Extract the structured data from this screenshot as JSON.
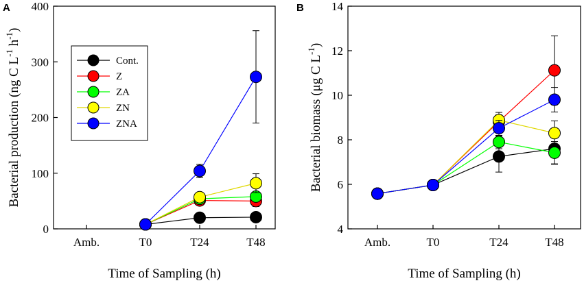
{
  "figure": {
    "panels": [
      "A",
      "B"
    ]
  },
  "chart_data": [
    {
      "panel": "A",
      "type": "line",
      "xlabel": "Time of Sampling (h)",
      "ylabel": "Bacterial production (ng C L",
      "ylabel_parts": [
        "Bacterial production (ng C L",
        "-1",
        " h",
        "-1",
        ")"
      ],
      "categories": [
        "Amb.",
        "T0",
        "T24",
        "T48"
      ],
      "ylim": [
        0,
        400
      ],
      "yticks": [
        0,
        100,
        200,
        300,
        400
      ],
      "legend": {
        "position": "upper-left",
        "entries": [
          "Cont.",
          "Z",
          "ZA",
          "ZN",
          "ZNA"
        ]
      },
      "series": [
        {
          "name": "Cont.",
          "color": "#000000",
          "values": [
            null,
            8,
            20,
            21
          ],
          "errors": [
            null,
            0,
            4,
            4
          ]
        },
        {
          "name": "Z",
          "color": "#ff0000",
          "values": [
            null,
            8,
            51,
            50
          ],
          "errors": [
            null,
            0,
            5,
            10
          ]
        },
        {
          "name": "ZA",
          "color": "#00ff00",
          "values": [
            null,
            8,
            54,
            58
          ],
          "errors": [
            null,
            0,
            5,
            6
          ]
        },
        {
          "name": "ZN",
          "color": "#ffff00",
          "values": [
            null,
            8,
            57,
            82
          ],
          "errors": [
            null,
            0,
            6,
            17
          ]
        },
        {
          "name": "ZNA",
          "color": "#0000ff",
          "values": [
            null,
            8,
            104,
            273
          ],
          "errors": [
            null,
            0,
            12,
            83
          ]
        }
      ]
    },
    {
      "panel": "B",
      "type": "line",
      "xlabel": "Time of Sampling (h)",
      "ylabel": "Bacterial biomass (μg C L",
      "ylabel_parts": [
        "Bacterial biomass (μg C L",
        "-1",
        ")"
      ],
      "categories": [
        "Amb.",
        "T0",
        "T24",
        "T48"
      ],
      "ylim": [
        4,
        14
      ],
      "yticks": [
        4,
        6,
        8,
        10,
        12,
        14
      ],
      "series": [
        {
          "name": "Cont.",
          "color": "#000000",
          "values": [
            5.58,
            5.97,
            7.25,
            7.6
          ],
          "errors": [
            0,
            0,
            0.7,
            0.7
          ]
        },
        {
          "name": "Z",
          "color": "#ff0000",
          "values": [
            5.58,
            5.97,
            8.82,
            11.12
          ],
          "errors": [
            0,
            0,
            0.3,
            1.55
          ]
        },
        {
          "name": "ZA",
          "color": "#00ff00",
          "values": [
            5.58,
            5.97,
            7.9,
            7.42
          ],
          "errors": [
            0,
            0,
            0.3,
            0.5
          ]
        },
        {
          "name": "ZN",
          "color": "#ffff00",
          "values": [
            5.58,
            5.97,
            8.88,
            8.3
          ],
          "errors": [
            0,
            0,
            0.35,
            0.55
          ]
        },
        {
          "name": "ZNA",
          "color": "#0000ff",
          "values": [
            5.58,
            5.97,
            8.52,
            9.8
          ],
          "errors": [
            0,
            0,
            0.35,
            0.55
          ]
        }
      ]
    }
  ]
}
